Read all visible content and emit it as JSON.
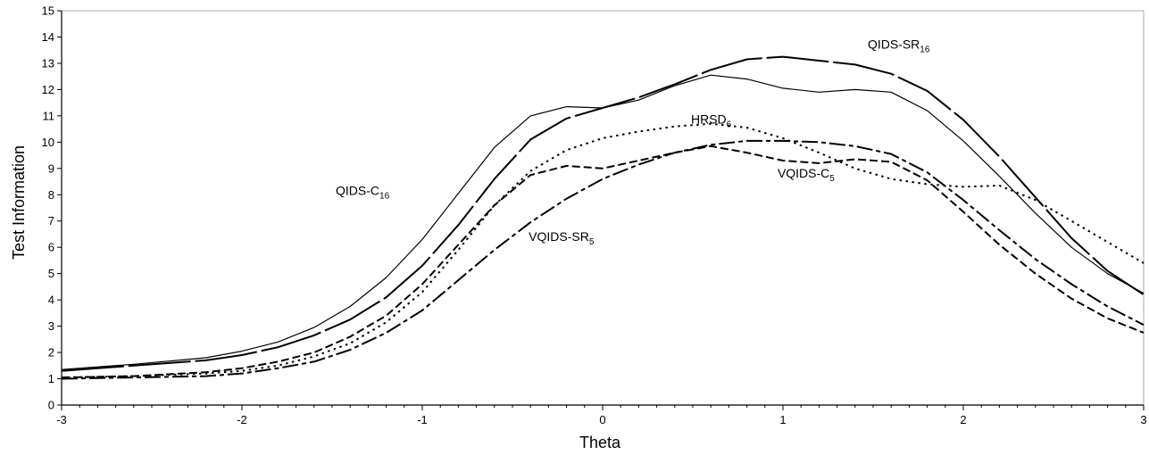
{
  "chart_data": {
    "type": "line",
    "xlabel": "Theta",
    "ylabel": "Test Information",
    "xlim": [
      -3,
      3
    ],
    "ylim": [
      0,
      15
    ],
    "x_ticks": [
      -3,
      -2,
      -1,
      0,
      1,
      2,
      3
    ],
    "x_minor_step": 0.1,
    "y_ticks": [
      0,
      1,
      2,
      3,
      4,
      5,
      6,
      7,
      8,
      9,
      10,
      11,
      12,
      13,
      14,
      15
    ],
    "grid": false,
    "legend": "none",
    "series": [
      {
        "name": "QIDS-C16",
        "label_main": "QIDS-C",
        "label_sub": "16",
        "style": "solid-thin",
        "x": [
          -3.0,
          -2.6,
          -2.2,
          -2.0,
          -1.8,
          -1.6,
          -1.4,
          -1.2,
          -1.0,
          -0.8,
          -0.6,
          -0.4,
          -0.2,
          0.0,
          0.2,
          0.4,
          0.6,
          0.8,
          1.0,
          1.2,
          1.4,
          1.6,
          1.8,
          2.0,
          2.2,
          2.4,
          2.6,
          2.8,
          3.0
        ],
        "y": [
          1.35,
          1.55,
          1.8,
          2.05,
          2.4,
          2.95,
          3.75,
          4.85,
          6.3,
          8.05,
          9.8,
          11.0,
          11.35,
          11.3,
          11.6,
          12.15,
          12.55,
          12.4,
          12.05,
          11.9,
          12.0,
          11.9,
          11.2,
          10.05,
          8.7,
          7.3,
          6.0,
          5.0,
          4.25
        ]
      },
      {
        "name": "QIDS-SR16",
        "label_main": "QIDS-SR",
        "label_sub": "16",
        "style": "long-dash",
        "x": [
          -3.0,
          -2.6,
          -2.2,
          -2.0,
          -1.8,
          -1.6,
          -1.4,
          -1.2,
          -1.0,
          -0.8,
          -0.6,
          -0.4,
          -0.2,
          0.0,
          0.2,
          0.4,
          0.6,
          0.8,
          1.0,
          1.2,
          1.4,
          1.6,
          1.8,
          2.0,
          2.2,
          2.4,
          2.6,
          2.8,
          3.0
        ],
        "y": [
          1.3,
          1.5,
          1.7,
          1.9,
          2.2,
          2.65,
          3.25,
          4.1,
          5.3,
          6.85,
          8.6,
          10.1,
          10.9,
          11.3,
          11.7,
          12.2,
          12.75,
          13.15,
          13.25,
          13.1,
          12.95,
          12.6,
          11.95,
          10.85,
          9.45,
          7.9,
          6.35,
          5.1,
          4.2
        ]
      },
      {
        "name": "HRSD6",
        "label_main": "HRSD",
        "label_sub": "6",
        "style": "dotted",
        "x": [
          -3.0,
          -2.6,
          -2.2,
          -2.0,
          -1.8,
          -1.6,
          -1.4,
          -1.2,
          -1.0,
          -0.8,
          -0.6,
          -0.4,
          -0.2,
          0.0,
          0.2,
          0.4,
          0.6,
          0.8,
          1.0,
          1.2,
          1.4,
          1.6,
          1.8,
          2.0,
          2.2,
          2.4,
          2.6,
          2.8,
          3.0
        ],
        "y": [
          1.05,
          1.1,
          1.2,
          1.3,
          1.5,
          1.85,
          2.35,
          3.15,
          4.3,
          5.9,
          7.6,
          8.9,
          9.7,
          10.15,
          10.4,
          10.6,
          10.7,
          10.55,
          10.15,
          9.6,
          9.0,
          8.6,
          8.4,
          8.3,
          8.35,
          7.8,
          7.0,
          6.2,
          5.4
        ]
      },
      {
        "name": "VQIDS-C5",
        "label_main": "VQIDS-C",
        "label_sub": "5",
        "style": "short-dash",
        "x": [
          -3.0,
          -2.6,
          -2.2,
          -2.0,
          -1.8,
          -1.6,
          -1.4,
          -1.2,
          -1.0,
          -0.8,
          -0.6,
          -0.4,
          -0.2,
          0.0,
          0.2,
          0.4,
          0.6,
          0.8,
          1.0,
          1.2,
          1.4,
          1.6,
          1.8,
          2.0,
          2.2,
          2.4,
          2.6,
          2.8,
          3.0
        ],
        "y": [
          1.05,
          1.1,
          1.25,
          1.4,
          1.65,
          2.0,
          2.6,
          3.4,
          4.6,
          6.1,
          7.6,
          8.75,
          9.1,
          9.0,
          9.3,
          9.6,
          9.85,
          9.6,
          9.3,
          9.2,
          9.35,
          9.25,
          8.55,
          7.35,
          6.1,
          5.0,
          4.05,
          3.3,
          2.75
        ]
      },
      {
        "name": "VQIDS-SR5",
        "label_main": "VQIDS-SR",
        "label_sub": "5",
        "style": "dash-dot",
        "x": [
          -3.0,
          -2.6,
          -2.2,
          -2.0,
          -1.8,
          -1.6,
          -1.4,
          -1.2,
          -1.0,
          -0.8,
          -0.6,
          -0.4,
          -0.2,
          0.0,
          0.2,
          0.4,
          0.6,
          0.8,
          1.0,
          1.2,
          1.4,
          1.6,
          1.8,
          2.0,
          2.2,
          2.4,
          2.6,
          2.8,
          3.0
        ],
        "y": [
          1.0,
          1.05,
          1.1,
          1.2,
          1.4,
          1.65,
          2.1,
          2.75,
          3.6,
          4.75,
          5.9,
          6.95,
          7.85,
          8.6,
          9.15,
          9.6,
          9.9,
          10.05,
          10.05,
          10.0,
          9.85,
          9.55,
          8.85,
          7.8,
          6.65,
          5.55,
          4.6,
          3.75,
          3.05
        ]
      }
    ],
    "annotations": [
      {
        "series": "QIDS-C16",
        "x": -1.48,
        "y": 8.0
      },
      {
        "series": "QIDS-SR16",
        "x": 1.47,
        "y": 13.55
      },
      {
        "series": "HRSD6",
        "x": 0.49,
        "y": 10.7
      },
      {
        "series": "VQIDS-C5",
        "x": 0.97,
        "y": 8.65
      },
      {
        "series": "VQIDS-SR5",
        "x": -0.41,
        "y": 6.25
      }
    ]
  },
  "colors": {
    "axis": "#000000",
    "frame": "#aaaaaa",
    "line": "#000000",
    "background": "#ffffff"
  }
}
